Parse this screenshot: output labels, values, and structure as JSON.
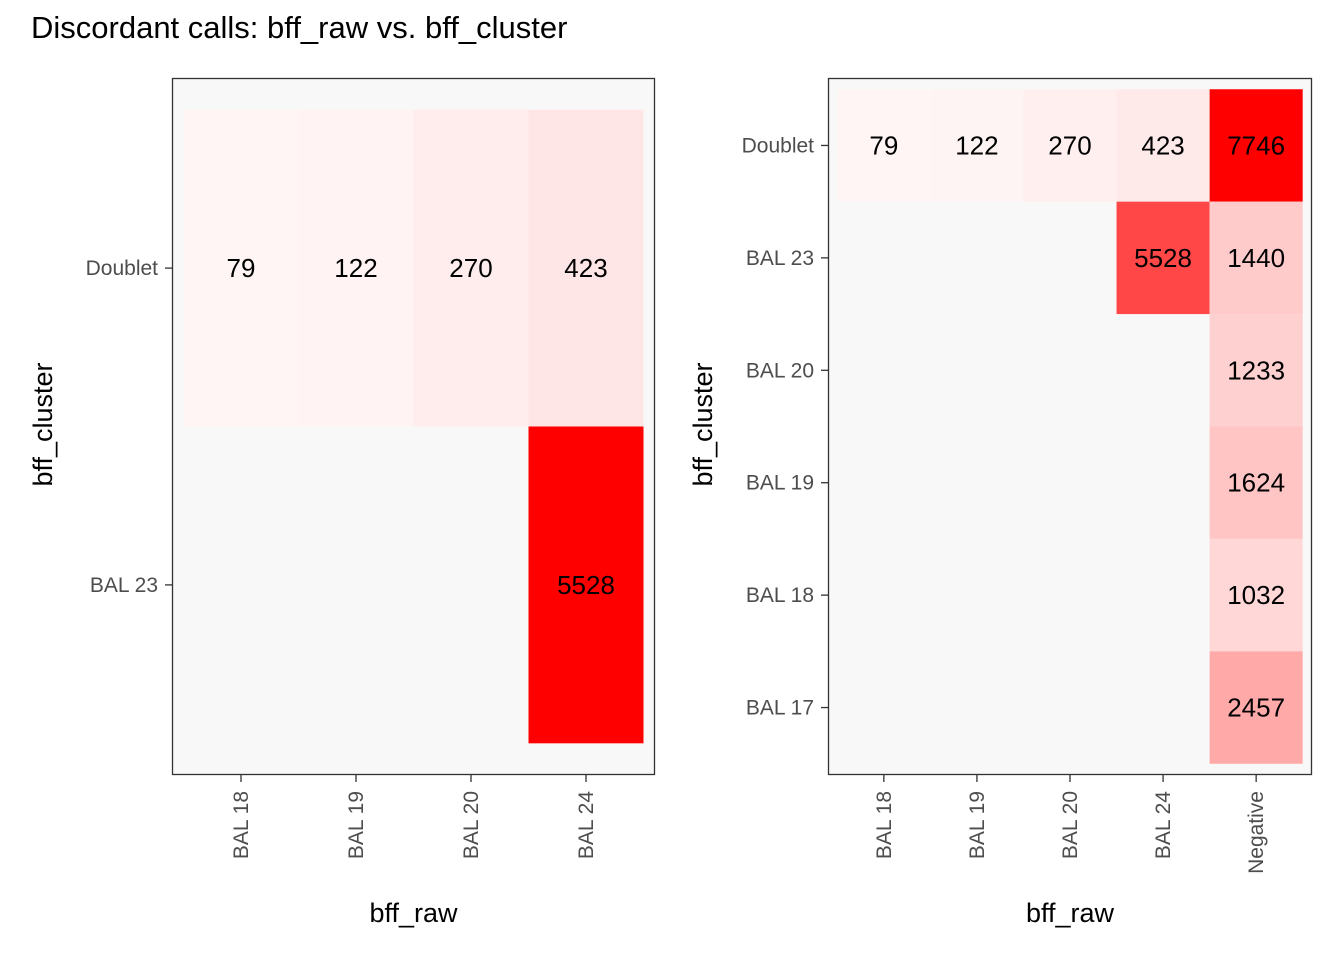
{
  "title": "Discordant calls: bff_raw vs. bff_cluster",
  "colors": {
    "low": "#FFF5F5",
    "high": "#FF0000",
    "panel": "#F8F8F8",
    "border": "#333333"
  },
  "chart_data": [
    {
      "type": "heatmap",
      "xlabel": "bff_raw",
      "ylabel": "bff_cluster",
      "x_categories": [
        "BAL 18",
        "BAL 19",
        "BAL 20",
        "BAL 24"
      ],
      "y_categories": [
        "Doublet",
        "BAL 23"
      ],
      "cells": [
        {
          "x": "BAL 18",
          "y": "Doublet",
          "value": 79
        },
        {
          "x": "BAL 19",
          "y": "Doublet",
          "value": 122
        },
        {
          "x": "BAL 20",
          "y": "Doublet",
          "value": 270
        },
        {
          "x": "BAL 24",
          "y": "Doublet",
          "value": 423
        },
        {
          "x": "BAL 24",
          "y": "BAL 23",
          "value": 5528
        }
      ]
    },
    {
      "type": "heatmap",
      "xlabel": "bff_raw",
      "ylabel": "bff_cluster",
      "x_categories": [
        "BAL 18",
        "BAL 19",
        "BAL 20",
        "BAL 24",
        "Negative"
      ],
      "y_categories": [
        "Doublet",
        "BAL 23",
        "BAL 20",
        "BAL 19",
        "BAL 18",
        "BAL 17"
      ],
      "cells": [
        {
          "x": "BAL 18",
          "y": "Doublet",
          "value": 79
        },
        {
          "x": "BAL 19",
          "y": "Doublet",
          "value": 122
        },
        {
          "x": "BAL 20",
          "y": "Doublet",
          "value": 270
        },
        {
          "x": "BAL 24",
          "y": "Doublet",
          "value": 423
        },
        {
          "x": "Negative",
          "y": "Doublet",
          "value": 7746
        },
        {
          "x": "BAL 24",
          "y": "BAL 23",
          "value": 5528
        },
        {
          "x": "Negative",
          "y": "BAL 23",
          "value": 1440
        },
        {
          "x": "Negative",
          "y": "BAL 20",
          "value": 1233
        },
        {
          "x": "Negative",
          "y": "BAL 19",
          "value": 1624
        },
        {
          "x": "Negative",
          "y": "BAL 18",
          "value": 1032
        },
        {
          "x": "Negative",
          "y": "BAL 17",
          "value": 2457
        }
      ]
    }
  ]
}
